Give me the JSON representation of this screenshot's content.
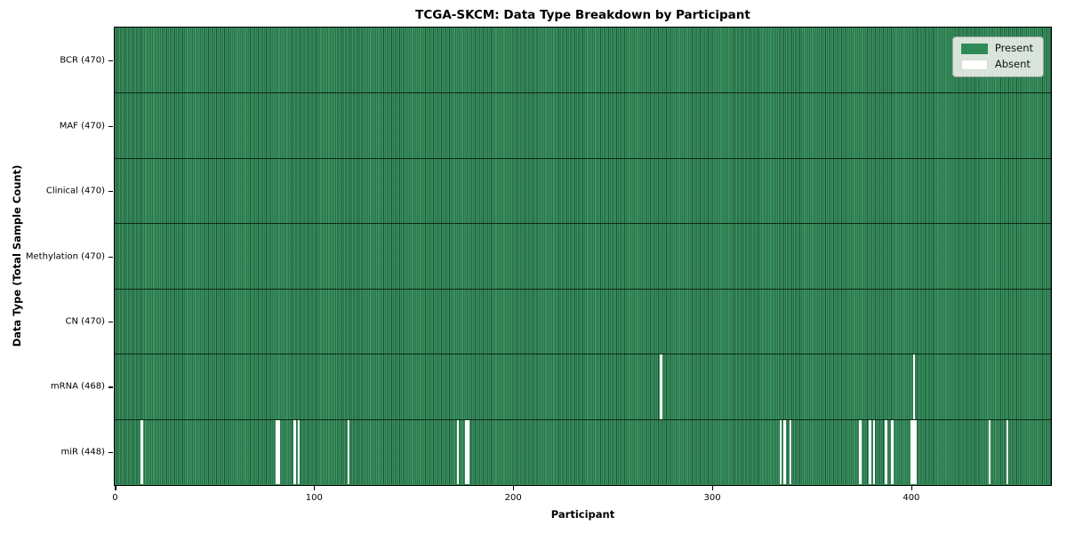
{
  "title": "TCGA-SKCM: Data Type Breakdown by Participant",
  "xlabel": "Participant",
  "ylabel": "Data Type (Total Sample Count)",
  "legend": {
    "present_label": "Present",
    "absent_label": "Absent"
  },
  "colors": {
    "present": "#2e8b57",
    "present_stripe_light": "#47996b",
    "cell_edge": "#1c5434",
    "absent": "#ffffff",
    "row_divider": "#0a1f12",
    "spine": "#000000",
    "legend_bg": "#eef1ec",
    "legend_border": "#9aa39a"
  },
  "chart_data": {
    "type": "heatmap",
    "title": "TCGA-SKCM: Data Type Breakdown by Participant",
    "xlabel": "Participant",
    "ylabel": "Data Type (Total Sample Count)",
    "legend": [
      "Present",
      "Absent"
    ],
    "legend_position": "upper right",
    "x_range": [
      0,
      470
    ],
    "x_ticks": [
      0,
      100,
      200,
      300,
      400
    ],
    "n_participants": 470,
    "cell_states": [
      "present",
      "absent"
    ],
    "rows": [
      {
        "label": "BCR (470)",
        "data_type": "BCR",
        "total_samples": 470,
        "absent_participants": []
      },
      {
        "label": "MAF (470)",
        "data_type": "MAF",
        "total_samples": 470,
        "absent_participants": []
      },
      {
        "label": "Clinical (470)",
        "data_type": "Clinical",
        "total_samples": 470,
        "absent_participants": []
      },
      {
        "label": "Methylation (470)",
        "data_type": "Methylation",
        "total_samples": 470,
        "absent_participants": []
      },
      {
        "label": "CN (470)",
        "data_type": "CN",
        "total_samples": 470,
        "absent_participants": []
      },
      {
        "label": "mRNA (468)",
        "data_type": "mRNA",
        "total_samples": 468,
        "absent_participants": [
          274,
          401
        ]
      },
      {
        "label": "miR (448)",
        "data_type": "miR",
        "total_samples": 448,
        "absent_participants": [
          13,
          81,
          82,
          90,
          92,
          117,
          172,
          176,
          177,
          334,
          336,
          339,
          374,
          379,
          381,
          387,
          390,
          400,
          401,
          402,
          439,
          448
        ]
      }
    ]
  }
}
